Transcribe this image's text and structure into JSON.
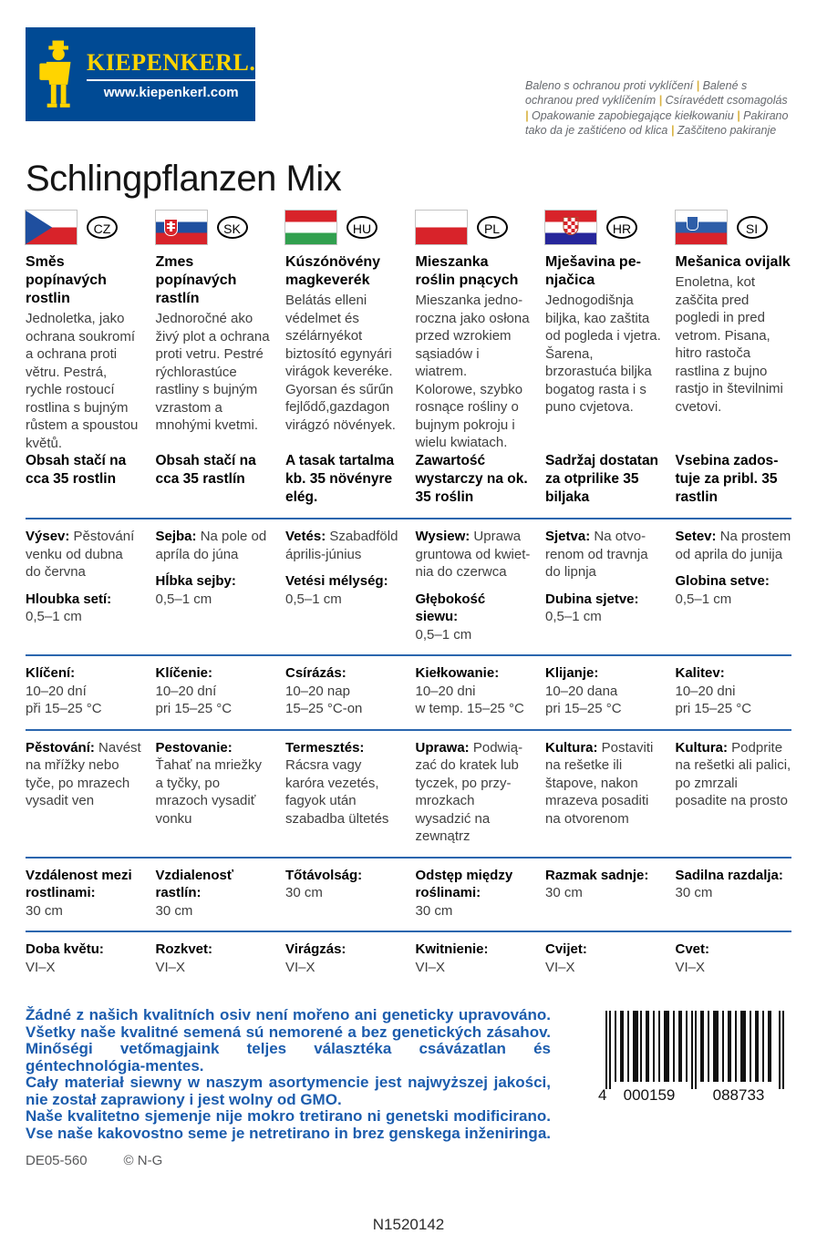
{
  "logo": {
    "brand": "KIEPENKERL.",
    "url": "www.kiepenkerl.com"
  },
  "protection_note": {
    "segments": [
      "Baleno s ochranou proti vyklíčení",
      "Balené s ochranou pred vyklíčením",
      "Csíravédett csomagolás",
      "Opakowanie zapobiegające kiełkowaniu",
      "Pakirano tako da je zaštićeno od klica",
      "Zaščiteno pakiranje"
    ]
  },
  "title": "Schlingpflanzen Mix",
  "columns": [
    {
      "code": "CZ",
      "flag": "czech-flag",
      "title": "Směs popínavých rostlin",
      "description": "Jednoletka, jako ochrana soukromí a ochrana proti větru. Pestrá, rychle rostoucí rostlina s bujným růstem a spoustou květů.",
      "content": "Obsah stačí na cca 35 rostlin",
      "sowing_label": "Výsev:",
      "sowing": "Pěstování venku od dubna do června",
      "depth_label": "Hloubka setí:",
      "depth": "0,5–1 cm",
      "germination_label": "Klíčení:",
      "germination_days": "10–20 dní",
      "germination_temp": "při 15–25 °C",
      "culture_label": "Pěstování:",
      "culture": "Navést na mřížky nebo tyče, po mrazech vysadit ven",
      "spacing_label": "Vzdálenost mezi rostlinami:",
      "spacing": "30 cm",
      "flowering_label": "Doba květu:",
      "flowering": "VI–X"
    },
    {
      "code": "SK",
      "flag": "slovak-flag",
      "title": "Zmes popínavých rastlín",
      "description": "Jednoročné ako živý plot a ochrana proti vetru. Pestré rých­lorastúce rastliny s bujným vzrastom a mnohými kvetmi.",
      "content": "Obsah stačí na cca 35 rastlín",
      "sowing_label": "Sejba:",
      "sowing": "Na pole od apríla do júna",
      "depth_label": "Hĺbka sejby:",
      "depth": "0,5–1 cm",
      "germination_label": "Klíčenie:",
      "germination_days": "10–20 dní",
      "germination_temp": "pri 15–25 °C",
      "culture_label": "Pestovanie:",
      "culture": "Ťahať na mriežky a tyčky, po mrazoch vysadiť vonku",
      "spacing_label": "Vzdialenosť rastlín:",
      "spacing": "30 cm",
      "flowering_label": "Rozkvet:",
      "flowering": "VI–X"
    },
    {
      "code": "HU",
      "flag": "hungarian-flag",
      "title": "Kúszónövény magkeverék",
      "description": "Belátás elleni védel­met és szélárnyékot biztosító egynyári virágok keveréke. Gyorsan és sűrűn fejlődő,gazdagon virágzó növények.",
      "content": "A tasak tartalma kb. 35 növényre elég.",
      "sowing_label": "Vetés:",
      "sowing": "Szabadföld április-június",
      "depth_label": "Vetési mélység:",
      "depth": "0,5–1 cm",
      "germination_label": "Csírázás:",
      "germination_days": "10–20 nap",
      "germination_temp": "15–25 °C-on",
      "culture_label": "Termesztés:",
      "culture": "Rácsra vagy karóra vezetés, fagyok után szabadba ültetés",
      "spacing_label": "Tőtávolság:",
      "spacing": "30 cm",
      "flowering_label": "Virágzás:",
      "flowering": "VI–X"
    },
    {
      "code": "PL",
      "flag": "polish-flag",
      "title": "Mieszanka roślin pnących",
      "description": "Mieszanka jedno­roczna jako osłona przed wzrokiem sąsiadów i wiatrem. Kolorowe, szybko rosnące rośliny o bujnym pokroju i wielu kwiatach.",
      "content": "Zawartość wystarczy na ok. 35 roślin",
      "sowing_label": "Wysiew:",
      "sowing": "Uprawa gruntowa od kwiet­nia do czerwca",
      "depth_label": "Głębokość siewu:",
      "depth": "0,5–1 cm",
      "germination_label": "Kiełkowanie:",
      "germination_days": "10–20 dni",
      "germination_temp": "w temp. 15–25 °C",
      "culture_label": "Uprawa:",
      "culture": "Podwią­zać do kratek lub tyczek, po przy­mrozkach wysadzić na zewnątrz",
      "spacing_label": "Odstęp między roślinami:",
      "spacing": "30 cm",
      "flowering_label": "Kwitnienie:",
      "flowering": "VI–X"
    },
    {
      "code": "HR",
      "flag": "croatian-flag",
      "title": "Mješavina pe­njačica",
      "description": "Jednogodišnja biljka, kao zaštita od pogleda i vjetra. Šarena, brzorastuća biljka bogatog rasta i s puno cvjetova.",
      "content": "Sadržaj dostatan za otprilike 35 biljaka",
      "sowing_label": "Sjetva:",
      "sowing": "Na otvo­renom od travnja do lipnja",
      "depth_label": "Dubina sjetve:",
      "depth": "0,5–1 cm",
      "germination_label": "Klijanje:",
      "germination_days": "10–20 dana",
      "germination_temp": "pri 15–25 °C",
      "culture_label": "Kultura:",
      "culture": "Posta­viti na rešetke ili štapove, nakon mrazeva posaditi na otvorenom",
      "spacing_label": "Razmak sadnje:",
      "spacing": "30 cm",
      "flowering_label": "Cvijet:",
      "flowering": "VI–X"
    },
    {
      "code": "SI",
      "flag": "slovenian-flag",
      "title": "Mešanica ovijalk",
      "description": "Enoletna, kot zaščita pred pogledi in pred vetrom. Pisana, hitro rastoča rastlina z bujno rastjo in številnimi cvetovi.",
      "content": "Vsebina zados­tuje za pribl. 35 rastlin",
      "sowing_label": "Setev:",
      "sowing": "Na prostem od aprila do junija",
      "depth_label": "Globina setve:",
      "depth": "0,5–1 cm",
      "germination_label": "Kalitev:",
      "germination_days": "10–20 dni",
      "germination_temp": "pri 15–25 °C",
      "culture_label": "Kultura:",
      "culture": "Podprite na rešetki ali palici, po zmrzali posadite na prosto",
      "spacing_label": "Sadilna razdalja:",
      "spacing": "30 cm",
      "flowering_label": "Cvet:",
      "flowering": "VI–X"
    }
  ],
  "gmo_statements": [
    "Žádné z našich kvalitních osiv není mořeno ani geneticky upravováno.",
    "Všetky naše kvalitné semená sú nemorené a bez genetických zásahov.",
    "Minőségi vetőmagjaink teljes választéka csávázatlan és géntechnológia-mentes.",
    "Cały materiał siewny w naszym asortymencie jest najwyższej jakości, nie został zaprawiony i jest wolny od GMO.",
    "Naše kvalitetno sjemenje nije mokro tretirano ni genetski modificirano.",
    "Vse naše kakovostno seme je netretirano in brez genskega inženiringa."
  ],
  "footer": {
    "print_code": "DE05-560",
    "copyright": "© N-G",
    "product_code": "N1520142",
    "barcode": {
      "digit": "4",
      "left_group": "000159",
      "right_group": "088733"
    }
  },
  "colors": {
    "brand_blue": "#004a94",
    "brand_yellow": "#ffd400",
    "rule_blue": "#2b66ae",
    "statement_blue": "#1b5cad",
    "flag_red": "#d8232a",
    "flag_blue": "#1f4f9f"
  }
}
